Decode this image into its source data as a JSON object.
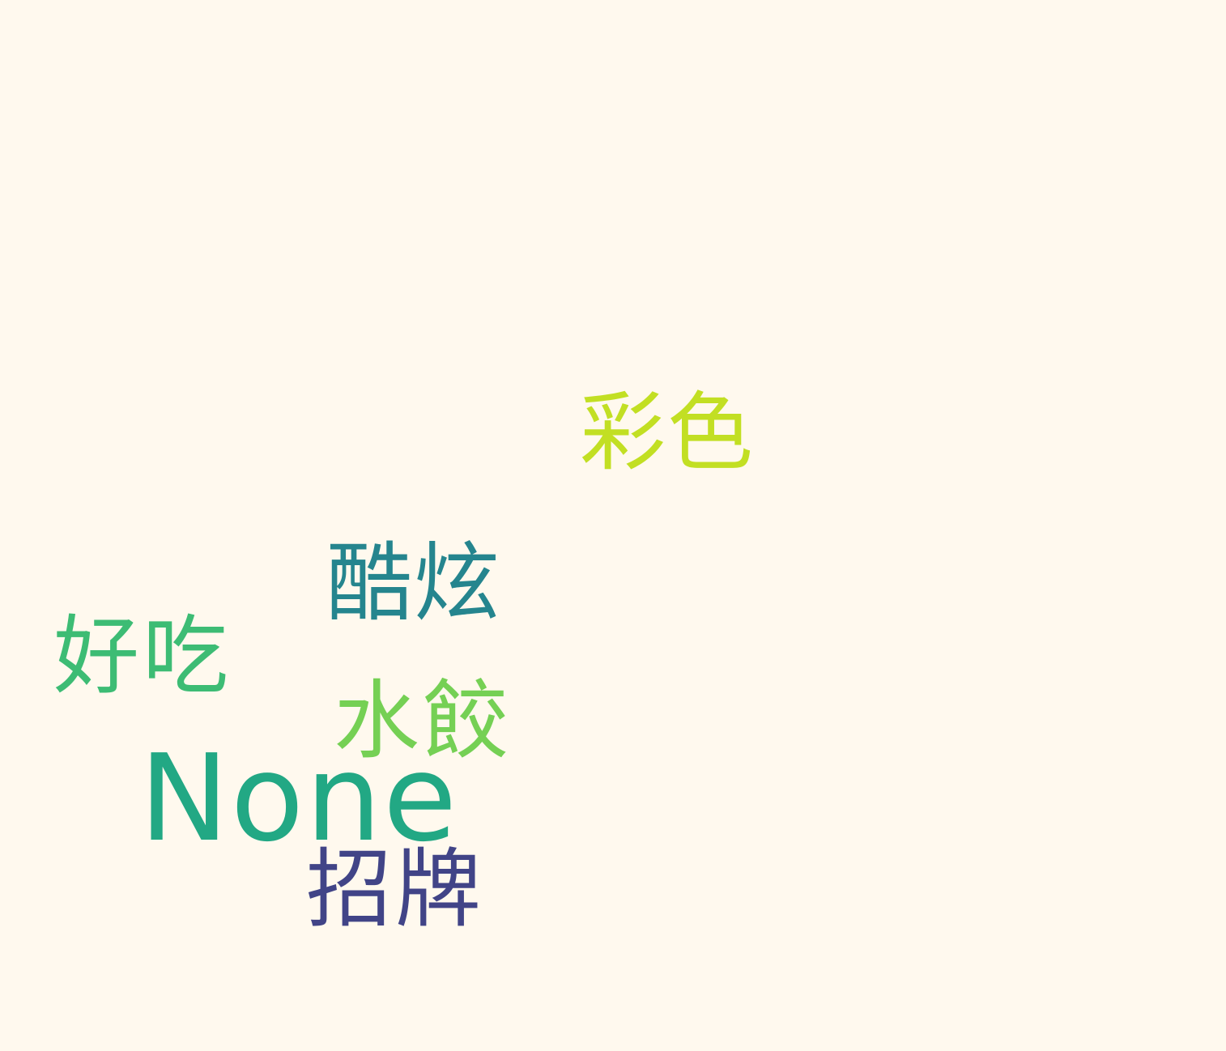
{
  "words": [
    {
      "text": "彩色",
      "color": "#c2df23"
    },
    {
      "text": "酷炫",
      "color": "#25858e"
    },
    {
      "text": "好吃",
      "color": "#3dbc74"
    },
    {
      "text": "水餃",
      "color": "#75d054"
    },
    {
      "text": "None",
      "color": "#22a884"
    },
    {
      "text": "招牌",
      "color": "#414487"
    }
  ]
}
